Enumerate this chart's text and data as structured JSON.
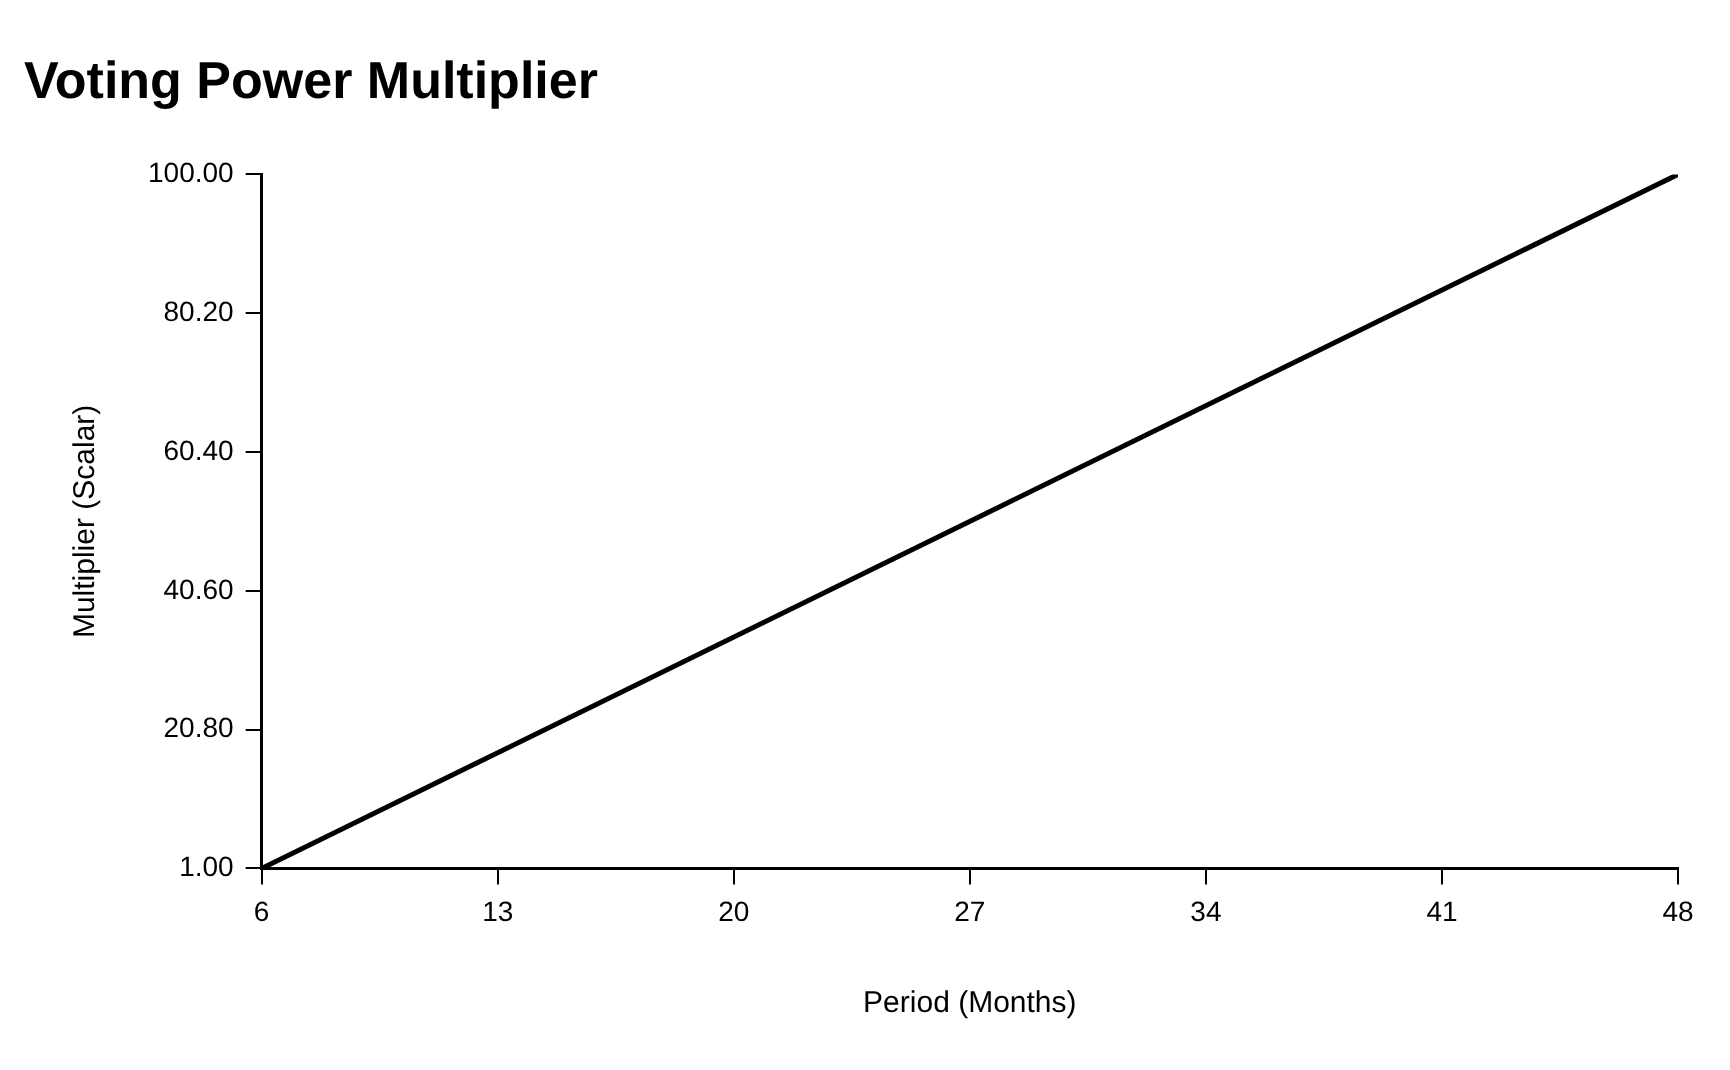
{
  "chart_data": {
    "type": "line",
    "title": "Voting Power Multiplier",
    "xlabel": "Period (Months)",
    "ylabel": "Multiplier (Scalar)",
    "x": [
      6,
      48
    ],
    "series": [
      {
        "color": "#000000",
        "values": [
          1,
          100
        ]
      }
    ],
    "xlim": [
      6,
      48
    ],
    "xticks": [
      6,
      13,
      20,
      27,
      34,
      41,
      48
    ],
    "ylim": [
      1,
      100
    ],
    "yticks": [
      {
        "value": 1,
        "label": "1.00"
      },
      {
        "value": 20.8,
        "label": "20.80"
      },
      {
        "value": 40.6,
        "label": "40.60"
      },
      {
        "value": 60.4,
        "label": "60.40"
      },
      {
        "value": 80.2,
        "label": "80.20"
      },
      {
        "value": 100,
        "label": "100.00"
      }
    ],
    "grid": false,
    "legend": false,
    "marker": "none",
    "line_style": "solid"
  }
}
